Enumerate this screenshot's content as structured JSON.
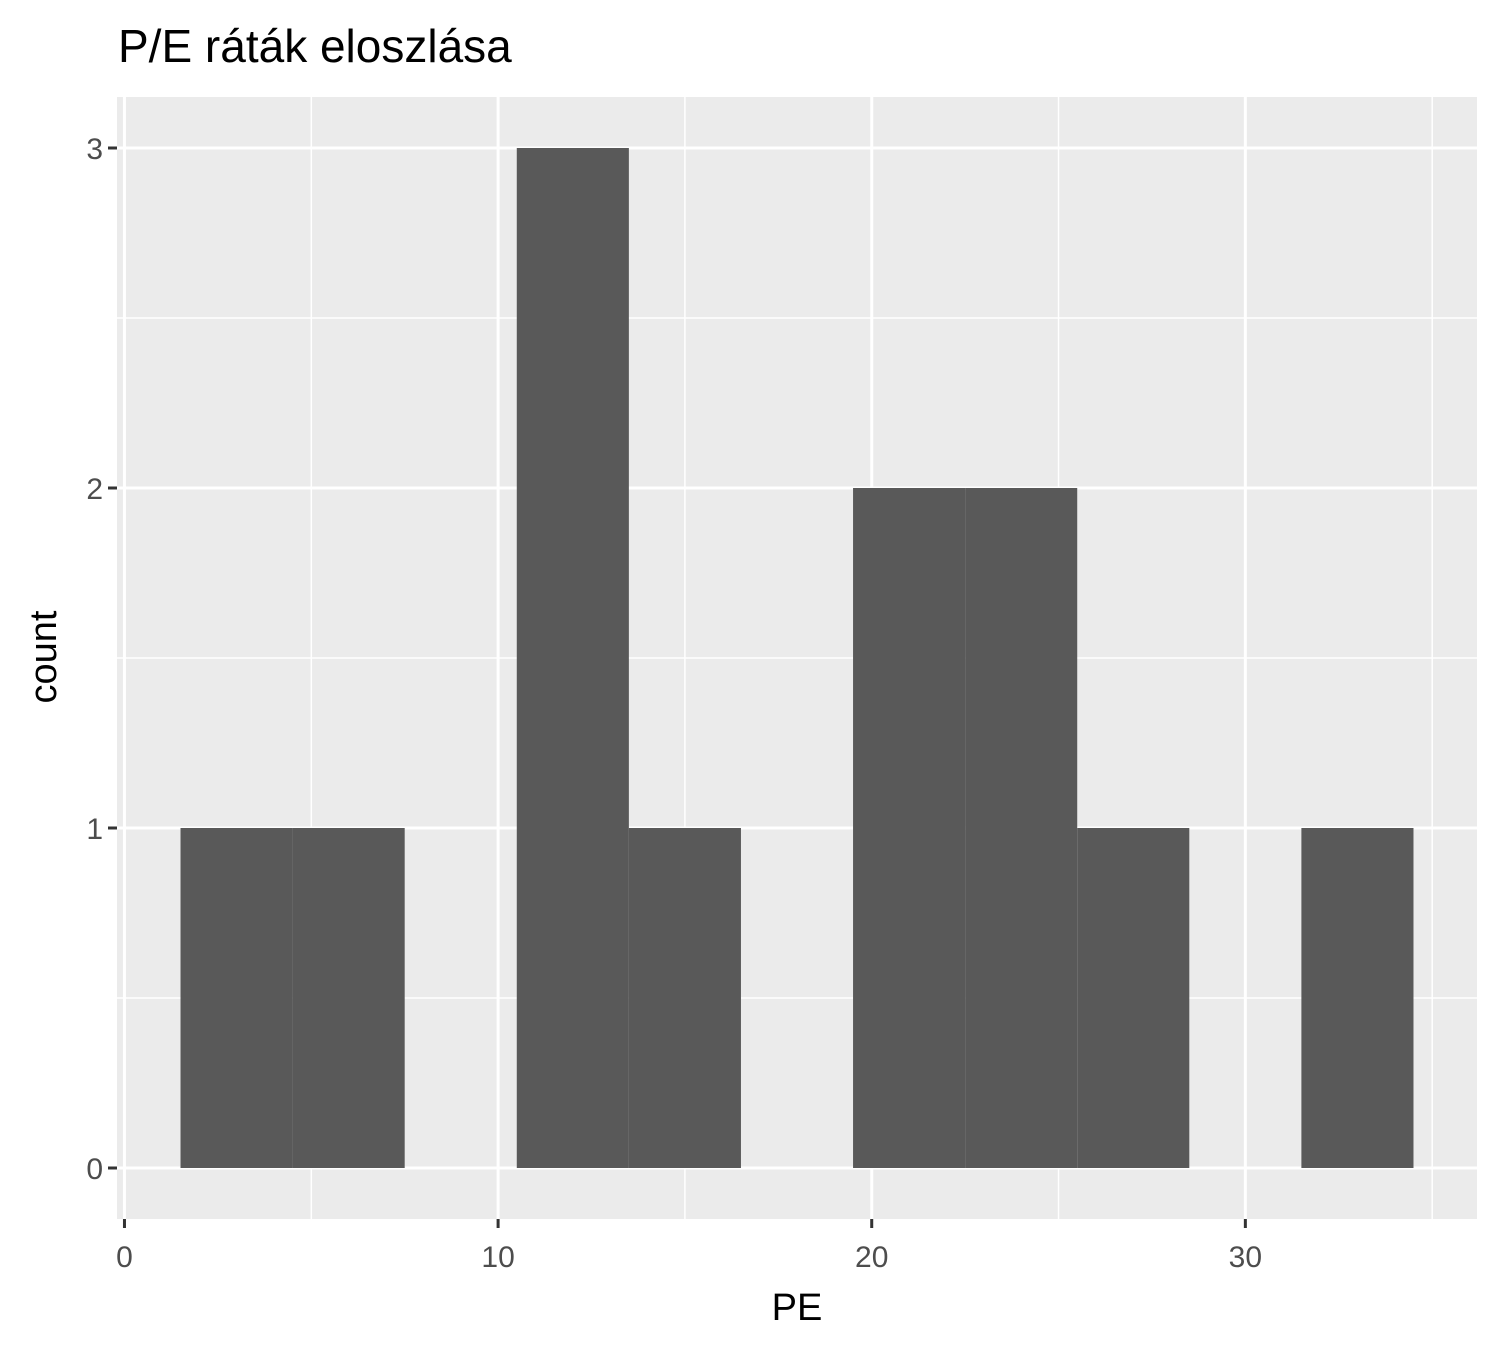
{
  "chart_data": {
    "type": "bar",
    "subtype": "histogram",
    "title": "P/E ráták eloszlása",
    "xlabel": "PE",
    "ylabel": "count",
    "xlim": [
      -0.2,
      36.2
    ],
    "ylim": [
      -0.15,
      3.15
    ],
    "x_ticks": [
      0,
      10,
      20,
      30
    ],
    "y_ticks": [
      0,
      1,
      2,
      3
    ],
    "grid": true,
    "colors": {
      "panel": "#ebebeb",
      "bar": "#595959",
      "grid": "#ffffff",
      "tick_text": "#4d4d4d",
      "tick_mark": "#333333"
    },
    "bins": [
      {
        "x0": 1.5,
        "x1": 4.5,
        "count": 1
      },
      {
        "x0": 4.5,
        "x1": 7.5,
        "count": 1
      },
      {
        "x0": 7.5,
        "x1": 10.5,
        "count": 0
      },
      {
        "x0": 10.5,
        "x1": 13.5,
        "count": 3
      },
      {
        "x0": 13.5,
        "x1": 16.5,
        "count": 1
      },
      {
        "x0": 16.5,
        "x1": 19.5,
        "count": 0
      },
      {
        "x0": 19.5,
        "x1": 22.5,
        "count": 2
      },
      {
        "x0": 22.5,
        "x1": 25.5,
        "count": 2
      },
      {
        "x0": 25.5,
        "x1": 28.5,
        "count": 1
      },
      {
        "x0": 28.5,
        "x1": 31.5,
        "count": 0
      },
      {
        "x0": 31.5,
        "x1": 34.5,
        "count": 1
      }
    ]
  }
}
